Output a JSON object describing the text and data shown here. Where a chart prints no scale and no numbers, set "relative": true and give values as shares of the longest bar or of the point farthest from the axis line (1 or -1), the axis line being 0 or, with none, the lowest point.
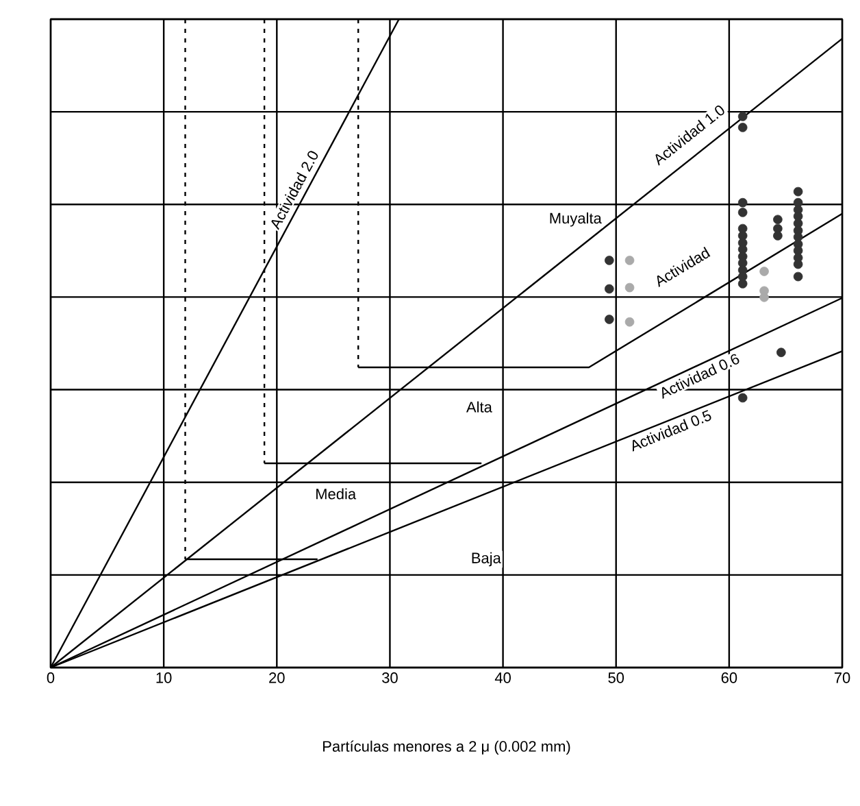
{
  "chart_data": {
    "type": "line",
    "relative": true,
    "xlabel": "Partículas menores a 2 μ (0.002 mm)",
    "xlim": [
      0,
      70
    ],
    "xticks": [
      0,
      10,
      20,
      30,
      40,
      50,
      60,
      70
    ],
    "grid": true,
    "line_style": "solid",
    "series": [
      {
        "color": "#000000",
        "x": [
          0,
          30.8
        ],
        "values": [
          0,
          1
        ]
      },
      {
        "color": "#000000",
        "x": [
          0,
          70
        ],
        "values": [
          0,
          0.97
        ]
      },
      {
        "color": "#000000",
        "x": [
          0,
          70
        ],
        "values": [
          0,
          0.57
        ]
      },
      {
        "color": "#000000",
        "x": [
          0,
          70
        ],
        "values": [
          0,
          0.488
        ]
      },
      {
        "color": "#000000",
        "line_style": "dotted",
        "x": [
          27.2,
          27.2
        ],
        "values": [
          1,
          0.463
        ]
      },
      {
        "color": "#000000",
        "x": [
          27.2,
          47.6,
          70
        ],
        "values": [
          0.463,
          0.463,
          0.7
        ]
      },
      {
        "color": "#000000",
        "line_style": "dotted",
        "x": [
          18.9,
          18.9
        ],
        "values": [
          1,
          0.315
        ]
      },
      {
        "color": "#000000",
        "x": [
          18.9,
          38.1
        ],
        "values": [
          0.315,
          0.315
        ]
      },
      {
        "color": "#000000",
        "line_style": "dotted",
        "x": [
          11.9,
          11.9
        ],
        "values": [
          1,
          0.167
        ]
      },
      {
        "color": "#000000",
        "x": [
          11.9,
          23.6
        ],
        "values": [
          0.167,
          0.167
        ]
      },
      {
        "type": "scatter",
        "color": "#333333",
        "marker": "circle",
        "x": [
          49.4,
          49.4,
          49.4,
          61.2,
          61.2,
          61.2,
          61.2,
          61.2,
          61.2,
          61.2,
          61.2,
          61.2,
          61.2,
          61.2,
          61.2,
          61.2,
          61.2,
          64.3,
          64.3,
          64.3,
          64.6,
          66.1,
          66.1,
          66.1,
          66.1,
          66.1,
          66.1,
          66.1,
          66.1,
          66.1,
          66.1,
          66.1,
          66.1
        ],
        "values": [
          0.628,
          0.584,
          0.537,
          0.85,
          0.833,
          0.717,
          0.702,
          0.677,
          0.666,
          0.655,
          0.645,
          0.634,
          0.624,
          0.613,
          0.603,
          0.592,
          0.416,
          0.691,
          0.677,
          0.666,
          0.486,
          0.734,
          0.717,
          0.706,
          0.696,
          0.685,
          0.674,
          0.664,
          0.653,
          0.643,
          0.632,
          0.622,
          0.603
        ]
      },
      {
        "type": "scatter",
        "color": "#aaaaaa",
        "marker": "circle",
        "x": [
          51.2,
          51.2,
          51.2,
          63.1,
          63.1,
          63.1
        ],
        "values": [
          0.628,
          0.586,
          0.533,
          0.611,
          0.581,
          0.571
        ]
      }
    ],
    "annotations": [
      "Actividad 2.0",
      "Actividad 1.0",
      "Actividad",
      "Actividad 0.6",
      "Actividad 0.5",
      "Muyalta",
      "Alta",
      "Media",
      "Baja"
    ]
  }
}
